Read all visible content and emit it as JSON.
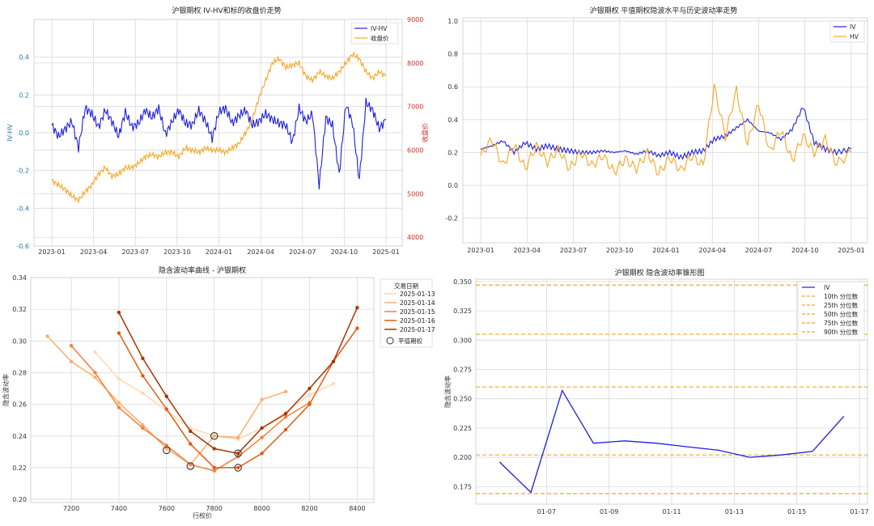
{
  "chart_data": [
    {
      "id": "c1",
      "type": "line",
      "title": "沪银期权 IV-HV和标的收盘价走势",
      "ylabel": "IV-HV",
      "y2label": "收盘价",
      "ylim": [
        -0.6,
        0.6
      ],
      "y2lim": [
        3800,
        9000
      ],
      "yticks": [
        "-0.6",
        "-0.4",
        "-0.2",
        "0.0",
        "0.2",
        "0.4"
      ],
      "y2ticks": [
        "4000",
        "5000",
        "6000",
        "7000",
        "8000",
        "9000"
      ],
      "xticks": [
        "2023-01",
        "2023-04",
        "2023-07",
        "2023-10",
        "2024-01",
        "2024-04",
        "2024-07",
        "2024-10",
        "2025-01"
      ],
      "legend": [
        "IV-HV",
        "收盘价"
      ],
      "colors": {
        "ivhv": "#1f1fe0",
        "close": "#f5a623",
        "left_axis": "#1f77b4",
        "right_axis": "#d62728"
      },
      "series": [
        {
          "name": "IV-HV",
          "axis": "left",
          "x": [
            0,
            0.02,
            0.04,
            0.06,
            0.08,
            0.1,
            0.12,
            0.14,
            0.16,
            0.18,
            0.2,
            0.22,
            0.24,
            0.26,
            0.28,
            0.3,
            0.32,
            0.34,
            0.36,
            0.38,
            0.4,
            0.42,
            0.44,
            0.46,
            0.48,
            0.5,
            0.52,
            0.54,
            0.56,
            0.58,
            0.6,
            0.62,
            0.64,
            0.66,
            0.68,
            0.7,
            0.72,
            0.74,
            0.76,
            0.78,
            0.8,
            0.82,
            0.84,
            0.86,
            0.88,
            0.9,
            0.92,
            0.94,
            0.96,
            0.98,
            1.0
          ],
          "values": [
            0.04,
            -0.02,
            0.02,
            0.06,
            -0.08,
            0.13,
            0.1,
            0.03,
            0.12,
            0.06,
            -0.02,
            0.11,
            0.03,
            0.05,
            0.12,
            0.08,
            0.13,
            -0.01,
            0.06,
            0.12,
            0.05,
            0.04,
            0.12,
            0.06,
            -0.03,
            0.11,
            0.13,
            0.05,
            0.09,
            0.12,
            0.04,
            0.06,
            0.1,
            0.07,
            0.05,
            0.04,
            -0.05,
            0.13,
            0.06,
            0.1,
            -0.28,
            0.08,
            0.04,
            -0.22,
            0.15,
            0.05,
            -0.25,
            0.16,
            0.12,
            0.02,
            0.07
          ]
        },
        {
          "name": "收盘价",
          "axis": "right",
          "x": [
            0,
            0.02,
            0.04,
            0.06,
            0.08,
            0.1,
            0.12,
            0.14,
            0.16,
            0.18,
            0.2,
            0.22,
            0.24,
            0.26,
            0.28,
            0.3,
            0.32,
            0.34,
            0.36,
            0.38,
            0.4,
            0.42,
            0.44,
            0.46,
            0.48,
            0.5,
            0.52,
            0.54,
            0.56,
            0.58,
            0.6,
            0.62,
            0.64,
            0.66,
            0.68,
            0.7,
            0.72,
            0.74,
            0.76,
            0.78,
            0.8,
            0.82,
            0.84,
            0.86,
            0.88,
            0.9,
            0.92,
            0.94,
            0.96,
            0.98,
            1.0
          ],
          "values": [
            5300,
            5200,
            5100,
            4950,
            4850,
            5050,
            5200,
            5450,
            5600,
            5400,
            5450,
            5600,
            5600,
            5700,
            5850,
            5900,
            5850,
            5950,
            5950,
            5850,
            6050,
            6000,
            5950,
            6050,
            6000,
            6000,
            5950,
            6050,
            6150,
            6400,
            6700,
            7200,
            7600,
            8000,
            8100,
            7900,
            7950,
            8000,
            7700,
            7600,
            7800,
            7700,
            7650,
            7800,
            8000,
            8200,
            8100,
            7800,
            7650,
            7800,
            7700
          ]
        }
      ]
    },
    {
      "id": "c2",
      "type": "line",
      "title": "沪银期权 平值期权隐波水平与历史波动率走势",
      "ylim": [
        -0.35,
        1.02
      ],
      "yticks": [
        "-0.2",
        "0.0",
        "0.2",
        "0.4",
        "0.6",
        "0.8",
        "1.0"
      ],
      "xticks": [
        "2023-01",
        "2023-04",
        "2023-07",
        "2023-10",
        "2024-01",
        "2024-04",
        "2024-07",
        "2024-10",
        "2025-01"
      ],
      "legend": [
        "IV",
        "HV"
      ],
      "colors": {
        "iv": "#1f1fe0",
        "hv": "#f5a623"
      },
      "series": [
        {
          "name": "IV",
          "x": [
            0,
            0.03,
            0.06,
            0.09,
            0.12,
            0.15,
            0.18,
            0.21,
            0.24,
            0.27,
            0.3,
            0.33,
            0.36,
            0.39,
            0.42,
            0.45,
            0.48,
            0.51,
            0.54,
            0.57,
            0.6,
            0.63,
            0.66,
            0.69,
            0.72,
            0.75,
            0.78,
            0.81,
            0.84,
            0.87,
            0.9,
            0.93,
            0.96,
            1.0
          ],
          "values": [
            0.22,
            0.24,
            0.27,
            0.2,
            0.26,
            0.22,
            0.24,
            0.22,
            0.21,
            0.2,
            0.2,
            0.21,
            0.2,
            0.21,
            0.19,
            0.21,
            0.18,
            0.2,
            0.17,
            0.2,
            0.21,
            0.28,
            0.3,
            0.35,
            0.4,
            0.33,
            0.32,
            0.28,
            0.34,
            0.48,
            0.26,
            0.22,
            0.2,
            0.22
          ]
        },
        {
          "name": "HV",
          "x": [
            0,
            0.03,
            0.06,
            0.09,
            0.12,
            0.15,
            0.18,
            0.21,
            0.24,
            0.27,
            0.3,
            0.33,
            0.36,
            0.39,
            0.42,
            0.45,
            0.48,
            0.51,
            0.54,
            0.57,
            0.6,
            0.63,
            0.66,
            0.69,
            0.72,
            0.75,
            0.78,
            0.81,
            0.84,
            0.87,
            0.9,
            0.93,
            0.96,
            1.0
          ],
          "values": [
            0.18,
            0.28,
            0.12,
            0.25,
            0.1,
            0.24,
            0.14,
            0.22,
            0.1,
            0.2,
            0.12,
            0.18,
            0.08,
            0.16,
            0.1,
            0.2,
            0.07,
            0.17,
            0.09,
            0.18,
            0.12,
            0.6,
            0.3,
            0.58,
            0.25,
            0.5,
            0.2,
            0.34,
            0.15,
            0.3,
            0.2,
            0.28,
            0.13,
            0.2
          ]
        }
      ]
    },
    {
      "id": "c3",
      "type": "line",
      "title": "隐含波动率曲线 - 沪银期权",
      "xlabel": "行权价",
      "ylabel": "隐含波动率",
      "xlim": [
        7030,
        8470
      ],
      "ylim": [
        0.198,
        0.34
      ],
      "xticks": [
        "7200",
        "7400",
        "7600",
        "7800",
        "8000",
        "8200",
        "8400"
      ],
      "yticks": [
        "0.20",
        "0.22",
        "0.24",
        "0.26",
        "0.28",
        "0.30",
        "0.32",
        "0.34"
      ],
      "legend_title": "交易日期",
      "atm_label": "平值期权",
      "series": [
        {
          "name": "2025-01-13",
          "color": "#fdd9b4",
          "x": [
            7300,
            7400,
            7500,
            7600,
            7700,
            7800,
            7900,
            8000,
            8100,
            8200,
            8300
          ],
          "values": [
            0.293,
            0.276,
            0.267,
            0.256,
            0.245,
            0.24,
            0.238,
            0.245,
            0.255,
            0.266,
            0.273
          ]
        },
        {
          "name": "2025-01-14",
          "color": "#fdae6b",
          "x": [
            7100,
            7200,
            7300,
            7400,
            7500,
            7600,
            7700,
            7800,
            7900,
            8000,
            8100
          ],
          "values": [
            0.303,
            0.287,
            0.277,
            0.261,
            0.247,
            0.232,
            0.222,
            0.24,
            0.239,
            0.263,
            0.268
          ]
        },
        {
          "name": "2025-01-15",
          "color": "#f57f3c",
          "x": [
            7200,
            7300,
            7400,
            7500,
            7600,
            7700,
            7800,
            7900,
            8000,
            8100,
            8200
          ],
          "values": [
            0.297,
            0.28,
            0.258,
            0.245,
            0.234,
            0.222,
            0.218,
            0.227,
            0.239,
            0.252,
            0.261
          ]
        },
        {
          "name": "2025-01-16",
          "color": "#e05b12",
          "x": [
            7400,
            7500,
            7600,
            7700,
            7800,
            7900,
            8000,
            8100,
            8200,
            8300,
            8400
          ],
          "values": [
            0.305,
            0.278,
            0.257,
            0.235,
            0.22,
            0.22,
            0.229,
            0.244,
            0.26,
            0.287,
            0.308
          ]
        },
        {
          "name": "2025-01-17",
          "color": "#a63603",
          "x": [
            7400,
            7500,
            7600,
            7700,
            7800,
            7900,
            8000,
            8100,
            8200,
            8300,
            8400
          ],
          "values": [
            0.318,
            0.289,
            0.265,
            0.243,
            0.232,
            0.229,
            0.245,
            0.254,
            0.27,
            0.287,
            0.321
          ]
        }
      ],
      "atm_points": [
        {
          "x": 7600,
          "y": 0.231
        },
        {
          "x": 7700,
          "y": 0.221
        },
        {
          "x": 7800,
          "y": 0.24
        },
        {
          "x": 7900,
          "y": 0.22
        },
        {
          "x": 7900,
          "y": 0.229
        }
      ]
    },
    {
      "id": "c4",
      "type": "line",
      "title": "沪银期权 隐含波动率锥形图",
      "ylabel": "隐含波动率",
      "ylim": [
        0.16,
        0.352
      ],
      "yticks": [
        "0.175",
        "0.200",
        "0.225",
        "0.250",
        "0.275",
        "0.300",
        "0.325",
        "0.350"
      ],
      "xticks": [
        "01-07",
        "01-09",
        "01-11",
        "01-13",
        "01-15",
        "01-17"
      ],
      "x_day_range": [
        5,
        17
      ],
      "series": [
        {
          "name": "IV",
          "color": "#1f1fe0",
          "x": [
            5.5,
            6.5,
            7.5,
            8.5,
            9.5,
            10.5,
            11.5,
            12.5,
            13.5,
            14.5,
            15.5,
            16.5
          ],
          "values": [
            0.196,
            0.17,
            0.257,
            0.212,
            0.214,
            0.212,
            0.209,
            0.206,
            0.2,
            0.202,
            0.205,
            0.235
          ]
        }
      ],
      "percentiles": [
        {
          "name": "10th 分位数",
          "value": 0.169
        },
        {
          "name": "25th 分位数",
          "value": 0.202
        },
        {
          "name": "50th 分位数",
          "value": 0.26
        },
        {
          "name": "75th 分位数",
          "value": 0.305
        },
        {
          "name": "90th 分位数",
          "value": 0.347
        }
      ],
      "percentile_color": "#f5a623"
    }
  ]
}
